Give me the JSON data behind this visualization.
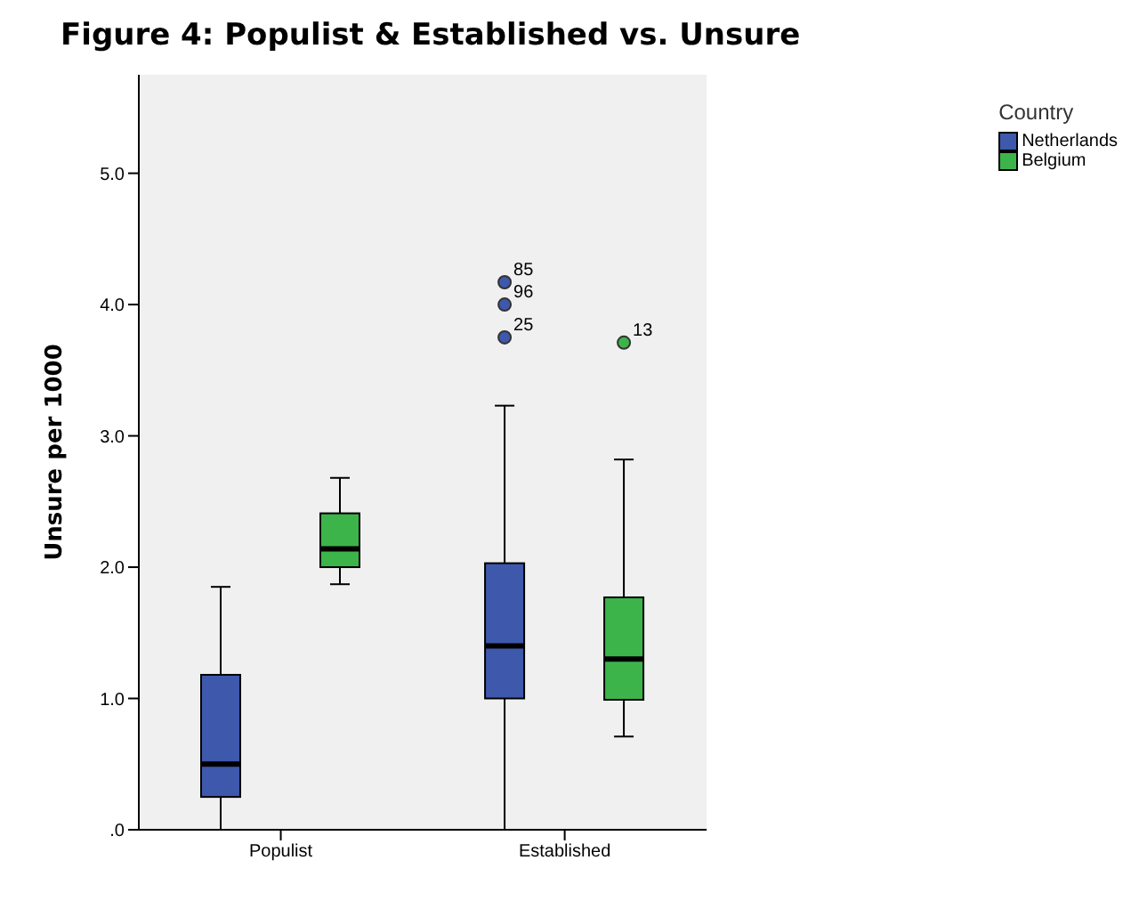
{
  "chart_data": {
    "type": "box",
    "title": "Figure 4: Populist & Established vs. Unsure",
    "ylabel": "Unsure per 1000",
    "legend_title": "Country",
    "legend": "right",
    "grid": false,
    "categories": [
      "Populist",
      "Established"
    ],
    "series": [
      {
        "name": "Netherlands",
        "color": "#3e58ac",
        "boxes": [
          {
            "low": 0,
            "q1": 0.25,
            "median": 0.5,
            "q3": 1.18,
            "high": 1.85
          },
          {
            "low": 0,
            "q1": 1.0,
            "median": 1.4,
            "q3": 2.03,
            "high": 3.23,
            "outliers": [
              4.17,
              4.0,
              3.75
            ]
          }
        ]
      },
      {
        "name": "Belgium",
        "color": "#3cb44a",
        "boxes": [
          {
            "low": 1.87,
            "q1": 2.0,
            "median": 2.14,
            "q3": 2.41,
            "high": 2.68
          },
          {
            "low": 0.71,
            "q1": 0.99,
            "median": 1.3,
            "q3": 1.77,
            "high": 2.82,
            "outliers": [
              3.71
            ]
          }
        ]
      }
    ],
    "ylim": [
      0,
      5.75
    ],
    "yticks": [
      {
        "value": 0,
        "label": ".0"
      },
      {
        "value": 1,
        "label": "1.0"
      },
      {
        "value": 2,
        "label": "2.0"
      },
      {
        "value": 3,
        "label": "3.0"
      },
      {
        "value": 4,
        "label": "4.0"
      },
      {
        "value": 5,
        "label": "5.0"
      }
    ],
    "annotations": [
      "85",
      "96",
      "25",
      "13"
    ]
  }
}
